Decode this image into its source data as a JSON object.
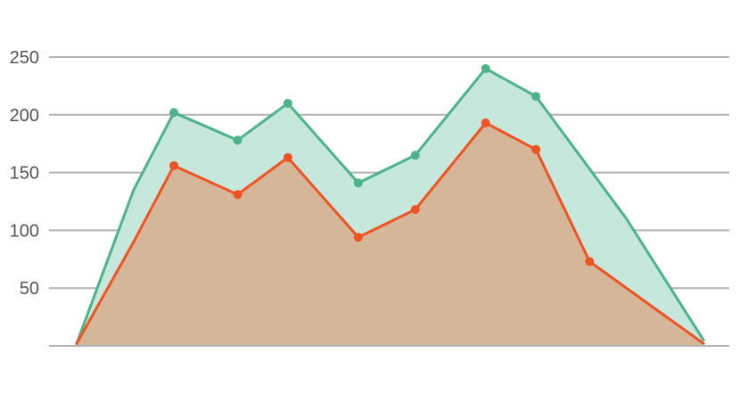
{
  "chart_data": {
    "type": "area",
    "title": "",
    "xlabel": "",
    "ylabel": "",
    "ylim": [
      0,
      250
    ],
    "yticks": [
      50,
      100,
      150,
      200,
      250
    ],
    "grid": true,
    "x": [
      0,
      1,
      2,
      3,
      4,
      5,
      6,
      7,
      8,
      9,
      10,
      11
    ],
    "series": [
      {
        "color": "#4cb38b",
        "fill": "#c6e7dc",
        "values": [
          2,
          135,
          202,
          178,
          210,
          141,
          165,
          240,
          216,
          110,
          5
        ],
        "x": [
          0,
          0.85,
          1.45,
          2.4,
          3.15,
          4.2,
          5.05,
          6.1,
          6.85,
          8.2,
          9.35
        ],
        "markers": [
          false,
          false,
          true,
          true,
          true,
          true,
          true,
          true,
          true,
          false,
          false
        ]
      },
      {
        "color": "#f05323",
        "fill": "#d5b699",
        "values": [
          2,
          90,
          156,
          131,
          163,
          94,
          118,
          193,
          170,
          73,
          2
        ],
        "x": [
          0,
          0.85,
          1.45,
          2.4,
          3.15,
          4.2,
          5.05,
          6.1,
          6.85,
          7.65,
          9.35
        ],
        "markers": [
          false,
          false,
          true,
          true,
          true,
          true,
          true,
          true,
          true,
          true,
          false
        ]
      }
    ]
  }
}
